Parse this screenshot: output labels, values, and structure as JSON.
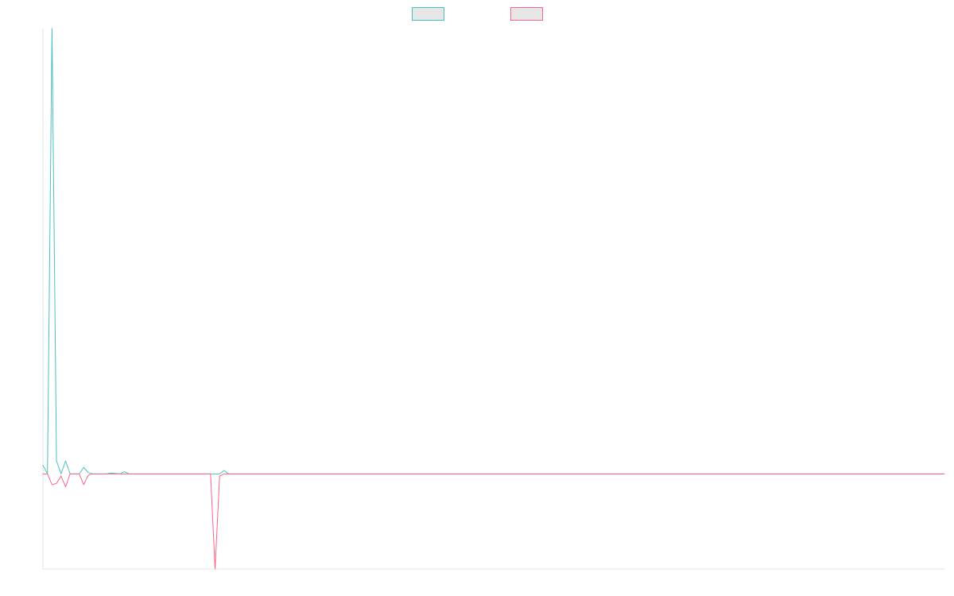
{
  "chart_data": {
    "type": "line",
    "title": "",
    "xlabel": "",
    "ylabel": "",
    "grid": false,
    "legend_position": "top-center",
    "x_count": 200,
    "ylim": [
      -22,
      103
    ],
    "series": [
      {
        "color": "#4bc0c0",
        "legend_fill": "#e6e6e6",
        "points": [
          [
            0,
            2
          ],
          [
            1,
            0
          ],
          [
            2,
            103
          ],
          [
            3,
            3
          ],
          [
            4,
            0
          ],
          [
            5,
            3
          ],
          [
            6,
            0
          ],
          [
            7,
            0
          ],
          [
            8,
            0
          ],
          [
            9,
            1.5
          ],
          [
            10,
            0.3
          ],
          [
            11,
            0
          ],
          [
            12,
            0
          ],
          [
            13,
            0
          ],
          [
            14,
            0
          ],
          [
            15,
            0.2
          ],
          [
            16,
            0.1
          ],
          [
            17,
            0
          ],
          [
            18,
            0.5
          ],
          [
            19,
            0
          ],
          [
            20,
            0
          ],
          [
            38,
            0
          ],
          [
            39,
            0
          ],
          [
            40,
            0.8
          ],
          [
            41,
            0
          ],
          [
            199,
            0
          ]
        ]
      },
      {
        "color": "#ff6384",
        "legend_fill": "#e6e6e6",
        "points": [
          [
            0,
            0
          ],
          [
            1,
            0
          ],
          [
            2,
            -2.5
          ],
          [
            3,
            -2.2
          ],
          [
            4,
            -0.5
          ],
          [
            5,
            -3
          ],
          [
            6,
            0
          ],
          [
            7,
            0
          ],
          [
            8,
            0
          ],
          [
            9,
            -2.5
          ],
          [
            10,
            -0.3
          ],
          [
            11,
            0
          ],
          [
            12,
            0
          ],
          [
            13,
            0
          ],
          [
            14,
            0
          ],
          [
            15,
            0
          ],
          [
            16,
            0
          ],
          [
            17,
            0
          ],
          [
            18,
            0
          ],
          [
            19,
            0
          ],
          [
            20,
            0
          ],
          [
            37,
            0
          ],
          [
            38,
            -22
          ],
          [
            39,
            -0.5
          ],
          [
            40,
            0
          ],
          [
            199,
            0
          ]
        ]
      }
    ]
  }
}
